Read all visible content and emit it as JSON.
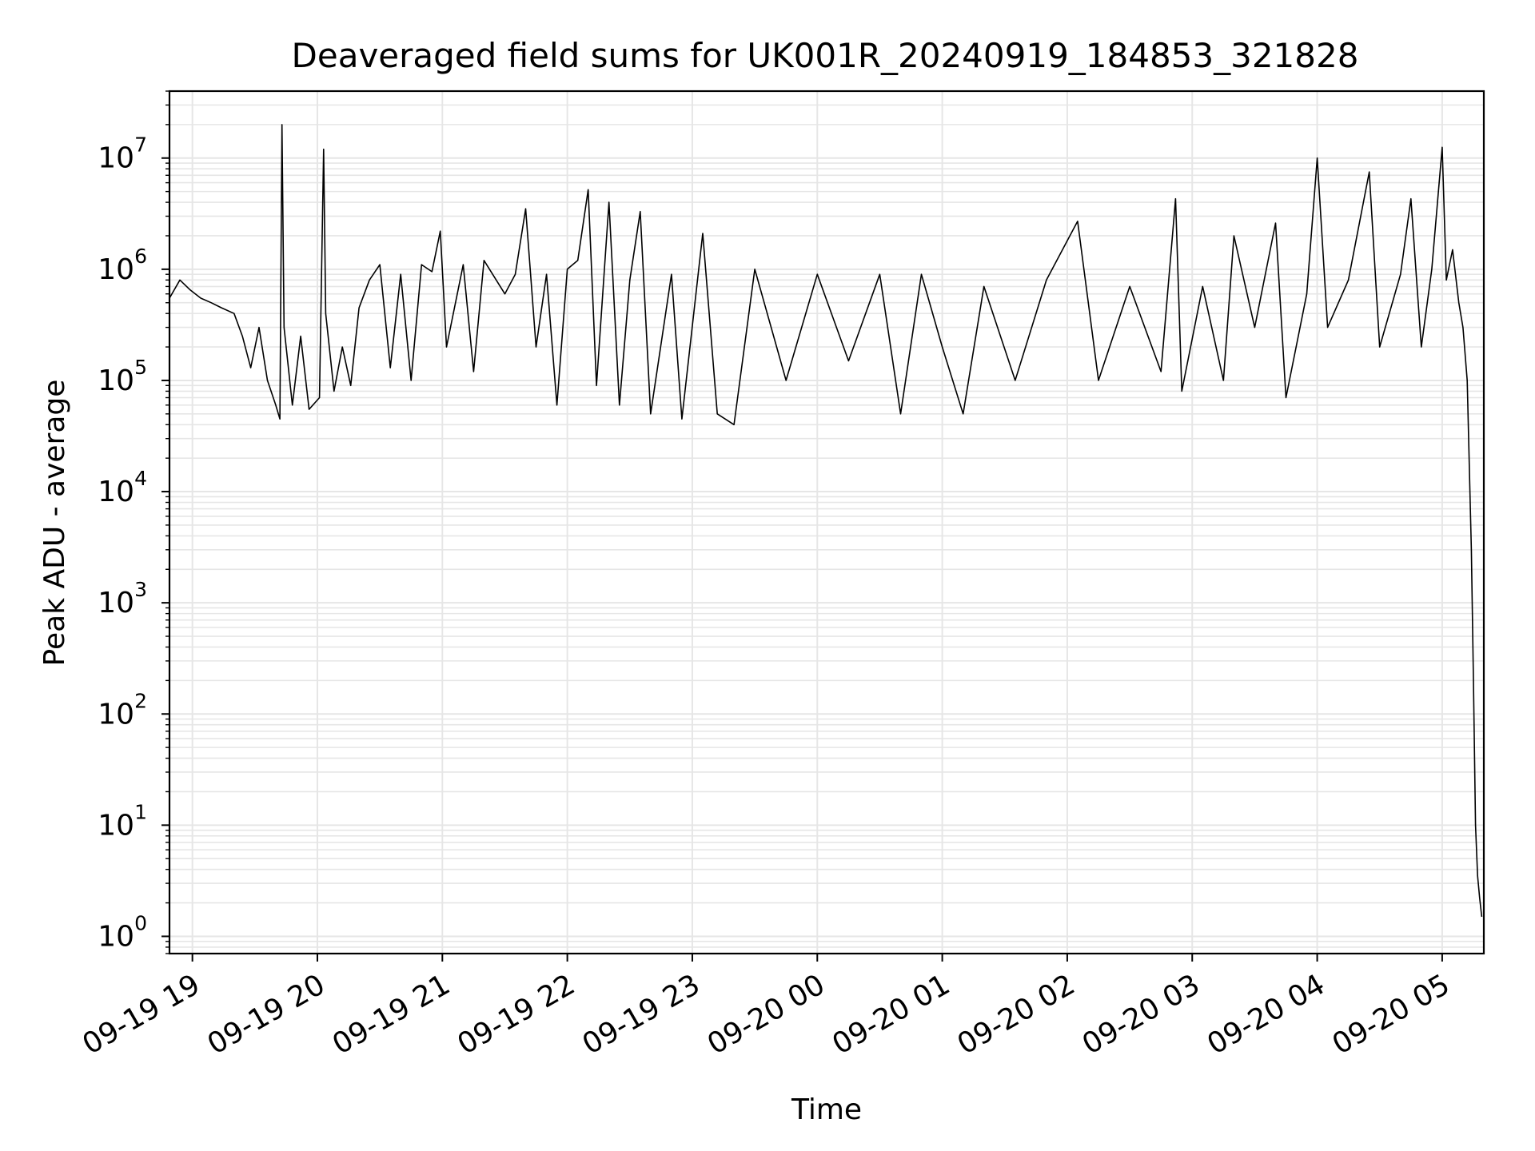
{
  "chart_data": {
    "type": "line",
    "title": "Deaveraged field sums for UK001R_20240919_184853_321828",
    "xlabel": "Time",
    "ylabel": "Peak ADU - average",
    "y_scale": "log",
    "ylim": [
      0.7,
      40000000
    ],
    "xlim": [
      "2024-09-19 18:49",
      "2024-09-20 05:20"
    ],
    "x_ticks": [
      {
        "value": "2024-09-19 19:00",
        "label": "09-19 19"
      },
      {
        "value": "2024-09-19 20:00",
        "label": "09-19 20"
      },
      {
        "value": "2024-09-19 21:00",
        "label": "09-19 21"
      },
      {
        "value": "2024-09-19 22:00",
        "label": "09-19 22"
      },
      {
        "value": "2024-09-19 23:00",
        "label": "09-19 23"
      },
      {
        "value": "2024-09-20 00:00",
        "label": "09-20 00"
      },
      {
        "value": "2024-09-20 01:00",
        "label": "09-20 01"
      },
      {
        "value": "2024-09-20 02:00",
        "label": "09-20 02"
      },
      {
        "value": "2024-09-20 03:00",
        "label": "09-20 03"
      },
      {
        "value": "2024-09-20 04:00",
        "label": "09-20 04"
      },
      {
        "value": "2024-09-20 05:00",
        "label": "09-20 05"
      }
    ],
    "y_ticks": [
      {
        "value": 1,
        "base": "10",
        "exp": "0"
      },
      {
        "value": 10,
        "base": "10",
        "exp": "1"
      },
      {
        "value": 100,
        "base": "10",
        "exp": "2"
      },
      {
        "value": 1000,
        "base": "10",
        "exp": "3"
      },
      {
        "value": 10000,
        "base": "10",
        "exp": "4"
      },
      {
        "value": 100000,
        "base": "10",
        "exp": "5"
      },
      {
        "value": 1000000,
        "base": "10",
        "exp": "6"
      },
      {
        "value": 10000000,
        "base": "10",
        "exp": "7"
      }
    ],
    "grid": true,
    "line_color": "#000000",
    "grid_color": "#e6e6e6",
    "series": [
      {
        "values": [
          [
            "2024-09-19 18:49",
            550000
          ],
          [
            "2024-09-19 18:54",
            800000
          ],
          [
            "2024-09-19 18:59",
            650000
          ],
          [
            "2024-09-19 19:04",
            550000
          ],
          [
            "2024-09-19 19:09",
            500000
          ],
          [
            "2024-09-19 19:14",
            450000
          ],
          [
            "2024-09-19 19:20",
            400000
          ],
          [
            "2024-09-19 19:24",
            250000
          ],
          [
            "2024-09-19 19:28",
            130000
          ],
          [
            "2024-09-19 19:32",
            300000
          ],
          [
            "2024-09-19 19:36",
            100000
          ],
          [
            "2024-09-19 19:40",
            60000
          ],
          [
            "2024-09-19 19:42",
            45000
          ],
          [
            "2024-09-19 19:43",
            20000000
          ],
          [
            "2024-09-19 19:44",
            300000
          ],
          [
            "2024-09-19 19:48",
            60000
          ],
          [
            "2024-09-19 19:52",
            250000
          ],
          [
            "2024-09-19 19:56",
            55000
          ],
          [
            "2024-09-19 20:01",
            70000
          ],
          [
            "2024-09-19 20:03",
            12000000
          ],
          [
            "2024-09-19 20:04",
            400000
          ],
          [
            "2024-09-19 20:08",
            80000
          ],
          [
            "2024-09-19 20:12",
            200000
          ],
          [
            "2024-09-19 20:16",
            90000
          ],
          [
            "2024-09-19 20:20",
            450000
          ],
          [
            "2024-09-19 20:25",
            800000
          ],
          [
            "2024-09-19 20:30",
            1100000
          ],
          [
            "2024-09-19 20:35",
            130000
          ],
          [
            "2024-09-19 20:40",
            900000
          ],
          [
            "2024-09-19 20:45",
            100000
          ],
          [
            "2024-09-19 20:50",
            1100000
          ],
          [
            "2024-09-19 20:55",
            950000
          ],
          [
            "2024-09-19 20:59",
            2200000
          ],
          [
            "2024-09-19 21:02",
            200000
          ],
          [
            "2024-09-19 21:10",
            1100000
          ],
          [
            "2024-09-19 21:15",
            120000
          ],
          [
            "2024-09-19 21:20",
            1200000
          ],
          [
            "2024-09-19 21:30",
            600000
          ],
          [
            "2024-09-19 21:35",
            900000
          ],
          [
            "2024-09-19 21:40",
            3500000
          ],
          [
            "2024-09-19 21:45",
            200000
          ],
          [
            "2024-09-19 21:50",
            900000
          ],
          [
            "2024-09-19 21:55",
            60000
          ],
          [
            "2024-09-19 22:00",
            1000000
          ],
          [
            "2024-09-19 22:05",
            1200000
          ],
          [
            "2024-09-19 22:10",
            5200000
          ],
          [
            "2024-09-19 22:14",
            90000
          ],
          [
            "2024-09-19 22:20",
            4000000
          ],
          [
            "2024-09-19 22:25",
            60000
          ],
          [
            "2024-09-19 22:30",
            800000
          ],
          [
            "2024-09-19 22:35",
            3300000
          ],
          [
            "2024-09-19 22:40",
            50000
          ],
          [
            "2024-09-19 22:50",
            900000
          ],
          [
            "2024-09-19 22:55",
            45000
          ],
          [
            "2024-09-19 23:05",
            2100000
          ],
          [
            "2024-09-19 23:12",
            50000
          ],
          [
            "2024-09-19 23:20",
            40000
          ],
          [
            "2024-09-19 23:30",
            1000000
          ],
          [
            "2024-09-19 23:45",
            100000
          ],
          [
            "2024-09-20 00:00",
            900000
          ],
          [
            "2024-09-20 00:15",
            150000
          ],
          [
            "2024-09-20 00:30",
            900000
          ],
          [
            "2024-09-20 00:40",
            50000
          ],
          [
            "2024-09-20 00:50",
            900000
          ],
          [
            "2024-09-20 01:00",
            200000
          ],
          [
            "2024-09-20 01:10",
            50000
          ],
          [
            "2024-09-20 01:20",
            700000
          ],
          [
            "2024-09-20 01:35",
            100000
          ],
          [
            "2024-09-20 01:50",
            800000
          ],
          [
            "2024-09-20 02:05",
            2700000
          ],
          [
            "2024-09-20 02:15",
            100000
          ],
          [
            "2024-09-20 02:30",
            700000
          ],
          [
            "2024-09-20 02:45",
            120000
          ],
          [
            "2024-09-20 02:52",
            4300000
          ],
          [
            "2024-09-20 02:55",
            80000
          ],
          [
            "2024-09-20 03:05",
            700000
          ],
          [
            "2024-09-20 03:15",
            100000
          ],
          [
            "2024-09-20 03:20",
            2000000
          ],
          [
            "2024-09-20 03:30",
            300000
          ],
          [
            "2024-09-20 03:40",
            2600000
          ],
          [
            "2024-09-20 03:45",
            70000
          ],
          [
            "2024-09-20 03:55",
            600000
          ],
          [
            "2024-09-20 04:00",
            10000000
          ],
          [
            "2024-09-20 04:05",
            300000
          ],
          [
            "2024-09-20 04:15",
            800000
          ],
          [
            "2024-09-20 04:25",
            7500000
          ],
          [
            "2024-09-20 04:30",
            200000
          ],
          [
            "2024-09-20 04:40",
            900000
          ],
          [
            "2024-09-20 04:45",
            4300000
          ],
          [
            "2024-09-20 04:50",
            200000
          ],
          [
            "2024-09-20 04:55",
            1000000
          ],
          [
            "2024-09-20 05:00",
            12500000
          ],
          [
            "2024-09-20 05:02",
            800000
          ],
          [
            "2024-09-20 05:05",
            1500000
          ],
          [
            "2024-09-20 05:08",
            500000
          ],
          [
            "2024-09-20 05:10",
            300000
          ],
          [
            "2024-09-20 05:12",
            100000
          ],
          [
            "2024-09-20 05:14",
            3000
          ],
          [
            "2024-09-20 05:15",
            200
          ],
          [
            "2024-09-20 05:16",
            10
          ],
          [
            "2024-09-20 05:17",
            3.5
          ],
          [
            "2024-09-20 05:18",
            2.2
          ],
          [
            "2024-09-20 05:19",
            1.5
          ]
        ]
      }
    ]
  }
}
